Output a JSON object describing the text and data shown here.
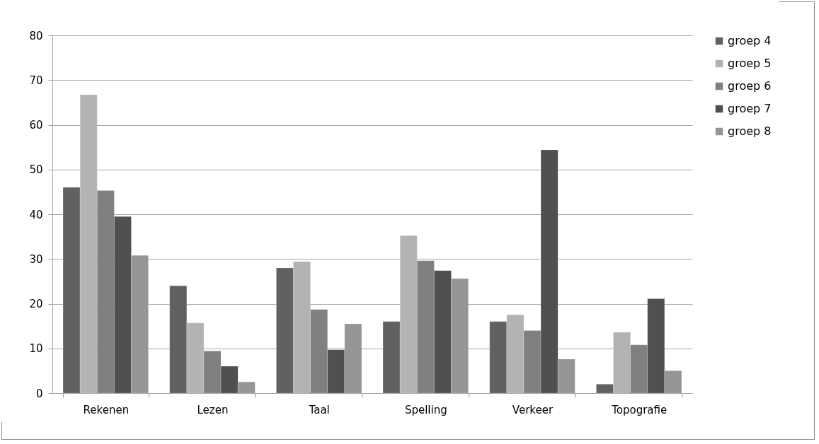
{
  "chart_data": {
    "type": "bar",
    "categories": [
      "Rekenen",
      "Lezen",
      "Taal",
      "Spelling",
      "Verkeer",
      "Topografie"
    ],
    "series": [
      {
        "name": "groep 4",
        "color": "#616161",
        "values": [
          46,
          24,
          28,
          16,
          16,
          2
        ]
      },
      {
        "name": "groep 5",
        "color": "#b3b3b3",
        "values": [
          66.7,
          15.7,
          29.4,
          35.2,
          17.5,
          13.6
        ]
      },
      {
        "name": "groep 6",
        "color": "#808080",
        "values": [
          45.3,
          9.4,
          18.7,
          29.6,
          14,
          10.8
        ]
      },
      {
        "name": "groep 7",
        "color": "#505050",
        "values": [
          39.5,
          6,
          9.7,
          27.4,
          54.4,
          21.1
        ]
      },
      {
        "name": "groep 8",
        "color": "#969696",
        "values": [
          30.8,
          2.5,
          15.5,
          25.6,
          7.6,
          5
        ]
      }
    ],
    "ylim": [
      0,
      80
    ],
    "yticks": [
      0,
      10,
      20,
      30,
      40,
      50,
      60,
      70,
      80
    ],
    "grid": "y",
    "legend": "right"
  }
}
